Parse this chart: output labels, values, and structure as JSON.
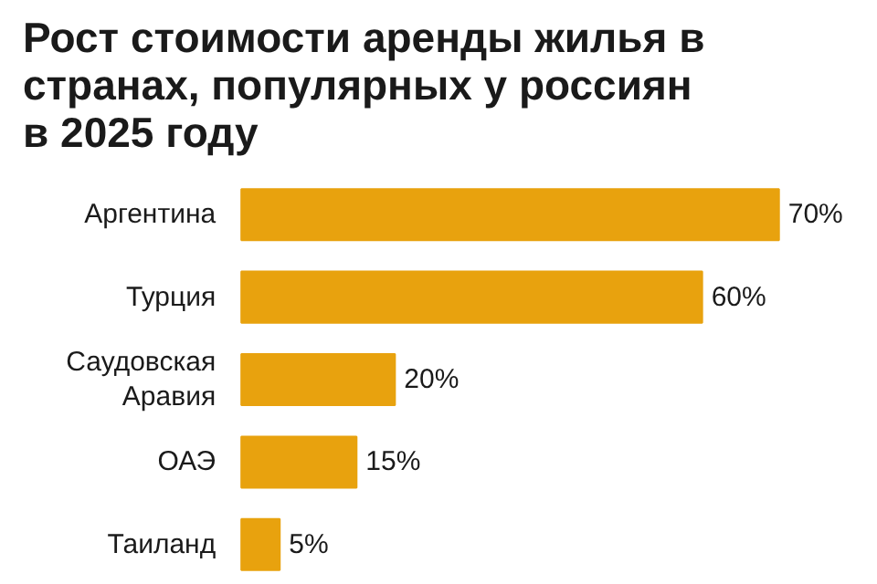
{
  "chart_data": {
    "type": "bar",
    "orientation": "horizontal",
    "title": "Рост стоимости аренды жилья в странах, популярных у россиян в 2025 году",
    "categories": [
      "Аргентина",
      "Турция",
      "Саудовская Аравия",
      "ОАЭ",
      "Таиланд"
    ],
    "values": [
      70,
      60,
      20,
      15,
      5
    ],
    "value_labels": [
      "70%",
      "60%",
      "20%",
      "15%",
      "5%"
    ],
    "color": "#e8a20e",
    "grid": false
  }
}
